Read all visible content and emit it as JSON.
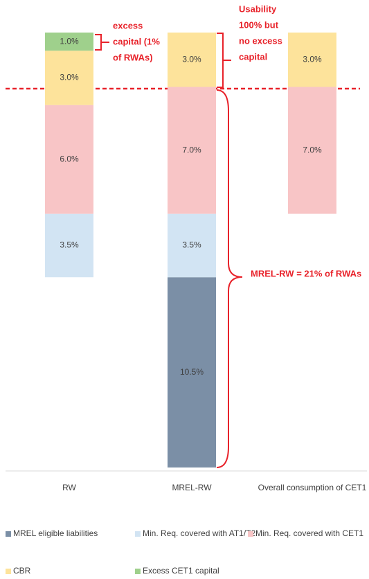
{
  "chart_data": {
    "type": "bar",
    "stacked": true,
    "categories": [
      "RW",
      "MREL-RW",
      "Overall consumption of CET1"
    ],
    "series": [
      {
        "name": "MREL eligible liabilities",
        "color": "#7b8fa6",
        "values": [
          null,
          10.5,
          null
        ],
        "value_labels": [
          null,
          "10.5%",
          null
        ]
      },
      {
        "name": "Min. Req. covered with AT1/T2",
        "color": "#d2e4f3",
        "values": [
          3.5,
          3.5,
          null
        ],
        "value_labels": [
          "3.5%",
          "3.5%",
          null
        ]
      },
      {
        "name": "Min. Req. covered with CET1",
        "color": "#f8c5c6",
        "values": [
          6.0,
          7.0,
          7.0
        ],
        "value_labels": [
          "6.0%",
          "7.0%",
          "7.0%"
        ]
      },
      {
        "name": "CBR",
        "color": "#fde39b",
        "values": [
          3.0,
          3.0,
          3.0
        ],
        "value_labels": [
          "3.0%",
          "3.0%",
          "3.0%"
        ]
      },
      {
        "name": "Excess CET1 capital",
        "color": "#9fd08c",
        "values": [
          1.0,
          null,
          null
        ],
        "value_labels": [
          "1.0%",
          null,
          null
        ]
      }
    ],
    "annotations": [
      {
        "lines": [
          "excess",
          "capital (1%",
          "of RWAs)"
        ]
      },
      {
        "lines": [
          "Usability",
          "100% but",
          "no excess",
          "capital"
        ]
      },
      {
        "lines": [
          "MREL-RW = 21% of RWAs"
        ]
      }
    ]
  }
}
